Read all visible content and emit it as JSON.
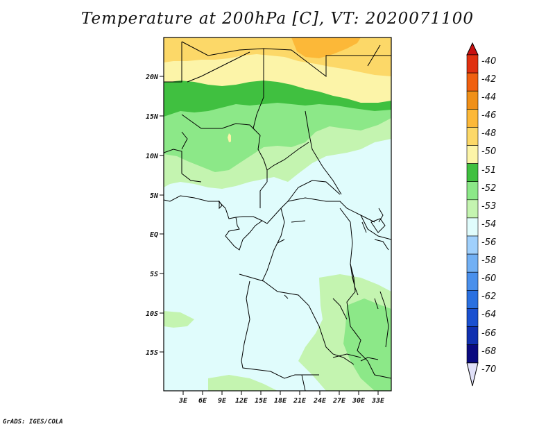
{
  "title": "Temperature at 200hPa [C], VT: 2020071100",
  "footer": "GrADS: IGES/COLA",
  "map": {
    "lat_labels": [
      "20N",
      "15N",
      "10N",
      "5N",
      "EQ",
      "5S",
      "10S",
      "15S"
    ],
    "lon_labels": [
      "3E",
      "6E",
      "9E",
      "12E",
      "15E",
      "18E",
      "21E",
      "24E",
      "27E",
      "30E",
      "33E"
    ]
  },
  "colorbar": {
    "labels": [
      "-40",
      "-42",
      "-44",
      "-46",
      "-48",
      "-50",
      "-51",
      "-52",
      "-53",
      "-54",
      "-56",
      "-58",
      "-60",
      "-62",
      "-64",
      "-66",
      "-68",
      "-70"
    ],
    "colors": [
      "#e0e0f8",
      "#0a0a80",
      "#1030b0",
      "#1a50d0",
      "#2a70e0",
      "#4a90ec",
      "#72b0f4",
      "#a0d0fc",
      "#e0fcfc",
      "#c4f4b0",
      "#8ce888",
      "#40c040",
      "#fcf4a8",
      "#fcd868",
      "#fcb838",
      "#f09018",
      "#f06010",
      "#e03010",
      "#c81010"
    ]
  },
  "colors": {
    "cyan": "#e0fcfc",
    "light_green": "#c4f4b0",
    "mid_green": "#8ce888",
    "dark_green": "#40c040",
    "pale_yellow": "#fcf4a8",
    "yellow": "#fcd868",
    "orange": "#fcb838"
  }
}
